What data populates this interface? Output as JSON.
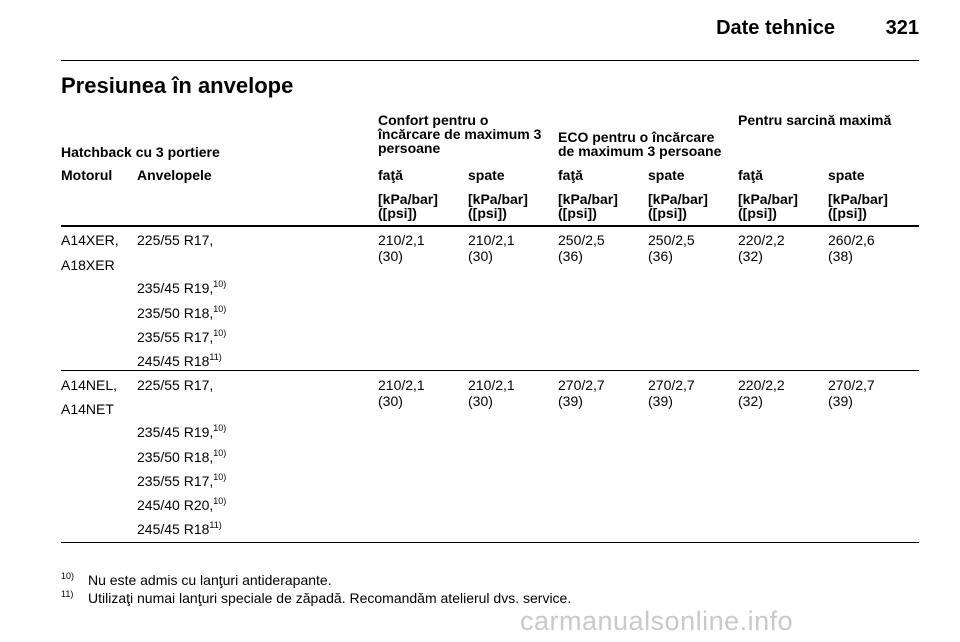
{
  "header": {
    "section": "Date tehnice",
    "page": "321"
  },
  "title": "Presiunea în anvelope",
  "table": {
    "group_label": "Hatchback cu 3 portiere",
    "group_headers": {
      "confort": [
        "Confort pentru o",
        "încărcare de maximum 3",
        "persoane"
      ],
      "eco": [
        "ECO pentru o încărcare",
        "de maximum 3 persoane"
      ],
      "max": "Pentru sarcină maximă"
    },
    "col_labels": {
      "engine": "Motorul",
      "tyres": "Anvelopele",
      "pos": [
        "faţă",
        "spate",
        "faţă",
        "spate",
        "faţă",
        "spate"
      ]
    },
    "units": [
      "[kPa/bar]",
      "([psi])"
    ],
    "rows": [
      {
        "engines": [
          "A14XER,",
          "A18XER"
        ],
        "tyres": [
          {
            "text": "225/55 R17,",
            "ref": ""
          },
          {
            "text": "235/45 R19,",
            "ref": "10)"
          },
          {
            "text": "235/50 R18,",
            "ref": "10)"
          },
          {
            "text": "235/55 R17,",
            "ref": "10)"
          },
          {
            "text": "245/45 R18",
            "ref": "11)"
          }
        ],
        "values": [
          [
            "210/2,1",
            "(30)"
          ],
          [
            "210/2,1",
            "(30)"
          ],
          [
            "250/2,5",
            "(36)"
          ],
          [
            "250/2,5",
            "(36)"
          ],
          [
            "220/2,2",
            "(32)"
          ],
          [
            "260/2,6",
            "(38)"
          ]
        ]
      },
      {
        "engines": [
          "A14NEL,",
          "A14NET"
        ],
        "tyres": [
          {
            "text": "225/55 R17,",
            "ref": ""
          },
          {
            "text": "235/45 R19,",
            "ref": "10)"
          },
          {
            "text": "235/50 R18,",
            "ref": "10)"
          },
          {
            "text": "235/55 R17,",
            "ref": "10)"
          },
          {
            "text": "245/40 R20,",
            "ref": "10)"
          },
          {
            "text": "245/45 R18",
            "ref": "11)"
          }
        ],
        "values": [
          [
            "210/2,1",
            "(30)"
          ],
          [
            "210/2,1",
            "(30)"
          ],
          [
            "270/2,7",
            "(39)"
          ],
          [
            "270/2,7",
            "(39)"
          ],
          [
            "220/2,2",
            "(32)"
          ],
          [
            "270/2,7",
            "(39)"
          ]
        ]
      }
    ]
  },
  "footnotes": [
    {
      "num": "10)",
      "text": "Nu este admis cu lanţuri antiderapante."
    },
    {
      "num": "11)",
      "text": "Utilizaţi numai lanţuri speciale de zăpadă. Recomandăm atelierul dvs. service."
    }
  ],
  "watermark": "carmanualsonline.info"
}
